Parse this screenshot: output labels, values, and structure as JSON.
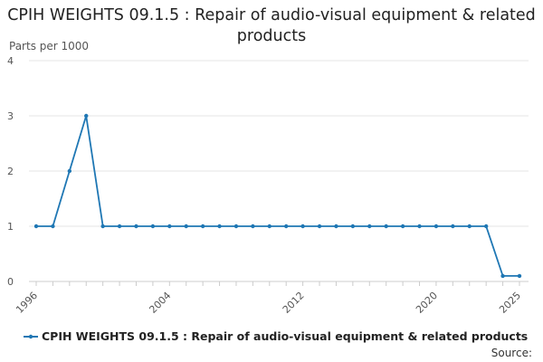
{
  "chart_data": {
    "type": "line",
    "title": "CPIH WEIGHTS 09.1.5 : Repair of audio-visual equipment & related products",
    "ylabel": "Parts per 1000",
    "xlabel": "",
    "x_ticks": [
      "1996",
      "2004",
      "2012",
      "2020",
      "2025"
    ],
    "y_ticks": [
      "0",
      "1",
      "2",
      "3",
      "4"
    ],
    "xlim": [
      1996,
      2025
    ],
    "ylim": [
      0,
      4
    ],
    "grid": true,
    "legend_position": "bottom",
    "x": [
      1996,
      1997,
      1998,
      1999,
      2000,
      2001,
      2002,
      2003,
      2004,
      2005,
      2006,
      2007,
      2008,
      2009,
      2010,
      2011,
      2012,
      2013,
      2014,
      2015,
      2016,
      2017,
      2018,
      2019,
      2020,
      2021,
      2022,
      2023,
      2024,
      2025
    ],
    "series": [
      {
        "name": "CPIH WEIGHTS 09.1.5 : Repair of audio-visual equipment & related products",
        "color": "#1f77b4",
        "values": [
          1,
          1,
          2,
          3,
          1,
          1,
          1,
          1,
          1,
          1,
          1,
          1,
          1,
          1,
          1,
          1,
          1,
          1,
          1,
          1,
          1,
          1,
          1,
          1,
          1,
          1,
          1,
          1,
          0.1,
          0.1
        ]
      }
    ]
  },
  "footer": {
    "source_label": "Source:"
  },
  "colors": {
    "series": "#1f77b4",
    "grid": "#e6e6e6",
    "axis": "#cccccc"
  }
}
